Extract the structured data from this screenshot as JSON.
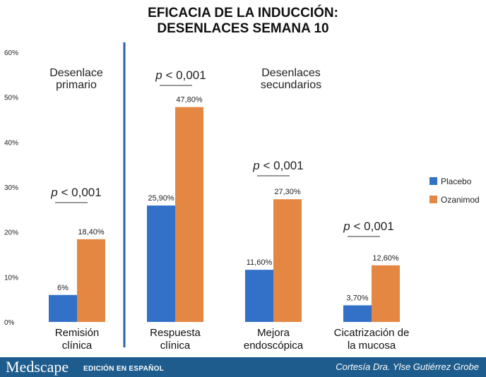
{
  "chart_data": {
    "type": "bar",
    "title": [
      "EFICACIA DE LA INDUCCIÓN:",
      "DESENLACES SEMANA 10"
    ],
    "categories": [
      [
        "Remisión",
        "clínica"
      ],
      [
        "Respuesta",
        "clínica"
      ],
      [
        "Mejora",
        "endoscópica"
      ],
      [
        "Cicatrización de",
        "la mucosa"
      ]
    ],
    "series": [
      {
        "name": "Placebo",
        "color": "#3370c8",
        "values": [
          6,
          25.9,
          11.6,
          3.7
        ],
        "labels": [
          "6%",
          "25,90%",
          "11,60%",
          "3,70%"
        ]
      },
      {
        "name": "Ozanimod",
        "color": "#e48742",
        "values": [
          18.4,
          47.8,
          27.3,
          12.6
        ],
        "labels": [
          "18,40%",
          "47,80%",
          "27,30%",
          "12,60%"
        ]
      }
    ],
    "ylim": [
      0,
      60
    ],
    "yticks": [
      0,
      10,
      20,
      30,
      40,
      50,
      60
    ],
    "ytick_labels": [
      "0%",
      "10%",
      "20%",
      "30%",
      "40%",
      "50%",
      "60%"
    ],
    "legend_position": "right",
    "annotations": {
      "primary": [
        "Desenlace",
        "primario"
      ],
      "secondary": [
        "Desenlaces",
        "secundarios"
      ],
      "p_values": [
        "p < 0,001",
        "p < 0,001",
        "p < 0,001",
        "p < 0,001"
      ]
    }
  },
  "footer": {
    "brand": "Medscape",
    "edition": "EDICIÓN EN ESPAÑOL",
    "courtesy": "Cortesía Dra. Ylse Gutiérrez Grobe"
  }
}
